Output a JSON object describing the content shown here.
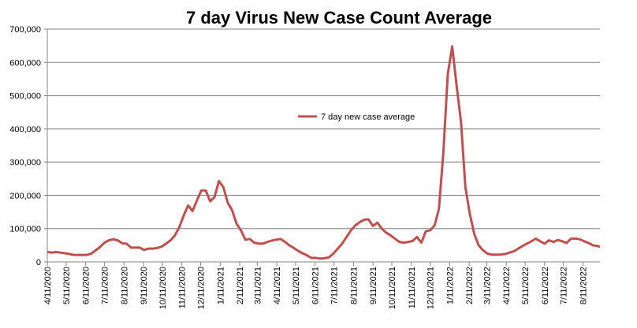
{
  "chart_data": {
    "type": "line",
    "title": "7 day Virus New Case Count Average",
    "xlabel": "",
    "ylabel": "",
    "ylim": [
      0,
      700000
    ],
    "xlim": [
      "2020-04-11",
      "2022-09-07"
    ],
    "grid": true,
    "legend_position": "center",
    "y_ticks": [
      "0",
      "100,000",
      "200,000",
      "300,000",
      "400,000",
      "500,000",
      "600,000",
      "700,000"
    ],
    "x_ticks": [
      "4/11/2020",
      "5/11/2020",
      "6/11/2020",
      "7/11/2020",
      "8/11/2020",
      "9/11/2020",
      "10/11/2020",
      "11/11/2020",
      "12/11/2020",
      "1/11/2021",
      "2/11/2021",
      "3/11/2021",
      "4/11/2021",
      "5/11/2021",
      "6/11/2021",
      "7/11/2021",
      "8/11/2021",
      "9/11/2021",
      "10/11/2021",
      "11/11/2021",
      "12/11/2021",
      "1/11/2022",
      "2/11/2022",
      "3/11/2022",
      "4/11/2022",
      "5/11/2022",
      "6/11/2022",
      "7/11/2022",
      "8/11/2022"
    ],
    "series": [
      {
        "name": "7 day new case average",
        "color": "#c0504d",
        "x": [
          "2020-04-11",
          "2020-04-18",
          "2020-04-25",
          "2020-05-02",
          "2020-05-09",
          "2020-05-16",
          "2020-05-23",
          "2020-05-30",
          "2020-06-06",
          "2020-06-13",
          "2020-06-20",
          "2020-06-27",
          "2020-07-04",
          "2020-07-11",
          "2020-07-18",
          "2020-07-25",
          "2020-08-01",
          "2020-08-08",
          "2020-08-15",
          "2020-08-22",
          "2020-08-29",
          "2020-09-05",
          "2020-09-12",
          "2020-09-19",
          "2020-09-26",
          "2020-10-03",
          "2020-10-10",
          "2020-10-17",
          "2020-10-24",
          "2020-10-31",
          "2020-11-07",
          "2020-11-14",
          "2020-11-21",
          "2020-11-28",
          "2020-12-05",
          "2020-12-12",
          "2020-12-19",
          "2020-12-26",
          "2021-01-02",
          "2021-01-09",
          "2021-01-16",
          "2021-01-23",
          "2021-01-30",
          "2021-02-06",
          "2021-02-13",
          "2021-02-20",
          "2021-02-27",
          "2021-03-06",
          "2021-03-13",
          "2021-03-20",
          "2021-03-27",
          "2021-04-03",
          "2021-04-10",
          "2021-04-17",
          "2021-04-24",
          "2021-05-01",
          "2021-05-08",
          "2021-05-15",
          "2021-05-22",
          "2021-05-29",
          "2021-06-05",
          "2021-06-12",
          "2021-06-19",
          "2021-06-26",
          "2021-07-03",
          "2021-07-10",
          "2021-07-17",
          "2021-07-24",
          "2021-07-31",
          "2021-08-07",
          "2021-08-14",
          "2021-08-21",
          "2021-08-28",
          "2021-09-04",
          "2021-09-11",
          "2021-09-18",
          "2021-09-25",
          "2021-10-02",
          "2021-10-09",
          "2021-10-16",
          "2021-10-23",
          "2021-10-30",
          "2021-11-06",
          "2021-11-13",
          "2021-11-20",
          "2021-11-27",
          "2021-12-04",
          "2021-12-11",
          "2021-12-18",
          "2021-12-25",
          "2022-01-01",
          "2022-01-08",
          "2022-01-15",
          "2022-01-22",
          "2022-01-29",
          "2022-02-05",
          "2022-02-12",
          "2022-02-19",
          "2022-02-26",
          "2022-03-05",
          "2022-03-12",
          "2022-03-19",
          "2022-03-26",
          "2022-04-02",
          "2022-04-09",
          "2022-04-16",
          "2022-04-23",
          "2022-04-30",
          "2022-05-07",
          "2022-05-14",
          "2022-05-21",
          "2022-05-28",
          "2022-06-04",
          "2022-06-11",
          "2022-06-18",
          "2022-06-25",
          "2022-07-02",
          "2022-07-09",
          "2022-07-16",
          "2022-07-23",
          "2022-07-30",
          "2022-08-06",
          "2022-08-13",
          "2022-08-20",
          "2022-08-27",
          "2022-09-03",
          "2022-09-07"
        ],
        "values": [
          30000,
          28000,
          30000,
          28000,
          26000,
          24000,
          21000,
          21000,
          21000,
          21000,
          25000,
          35000,
          45000,
          58000,
          65000,
          68000,
          65000,
          56000,
          55000,
          43000,
          43000,
          43000,
          36000,
          40000,
          40000,
          42000,
          46000,
          55000,
          65000,
          80000,
          105000,
          140000,
          170000,
          153000,
          185000,
          215000,
          215000,
          182000,
          195000,
          243000,
          225000,
          178000,
          155000,
          115000,
          95000,
          67000,
          69000,
          58000,
          55000,
          55000,
          60000,
          64000,
          67000,
          69000,
          60000,
          50000,
          42000,
          33000,
          26000,
          20000,
          12000,
          12000,
          10000,
          11000,
          14000,
          25000,
          40000,
          55000,
          75000,
          95000,
          110000,
          120000,
          127000,
          128000,
          108000,
          118000,
          100000,
          88000,
          80000,
          70000,
          60000,
          58000,
          60000,
          63000,
          75000,
          58000,
          92000,
          95000,
          110000,
          160000,
          330000,
          565000,
          648000,
          530000,
          420000,
          225000,
          145000,
          85000,
          50000,
          35000,
          25000,
          22000,
          22000,
          22000,
          24000,
          28000,
          32000,
          40000,
          48000,
          55000,
          62000,
          70000,
          62000,
          55000,
          65000,
          60000,
          66000,
          62000,
          57000,
          70000,
          70000,
          68000,
          62000,
          57000,
          50000,
          48000,
          45000
        ]
      }
    ]
  }
}
